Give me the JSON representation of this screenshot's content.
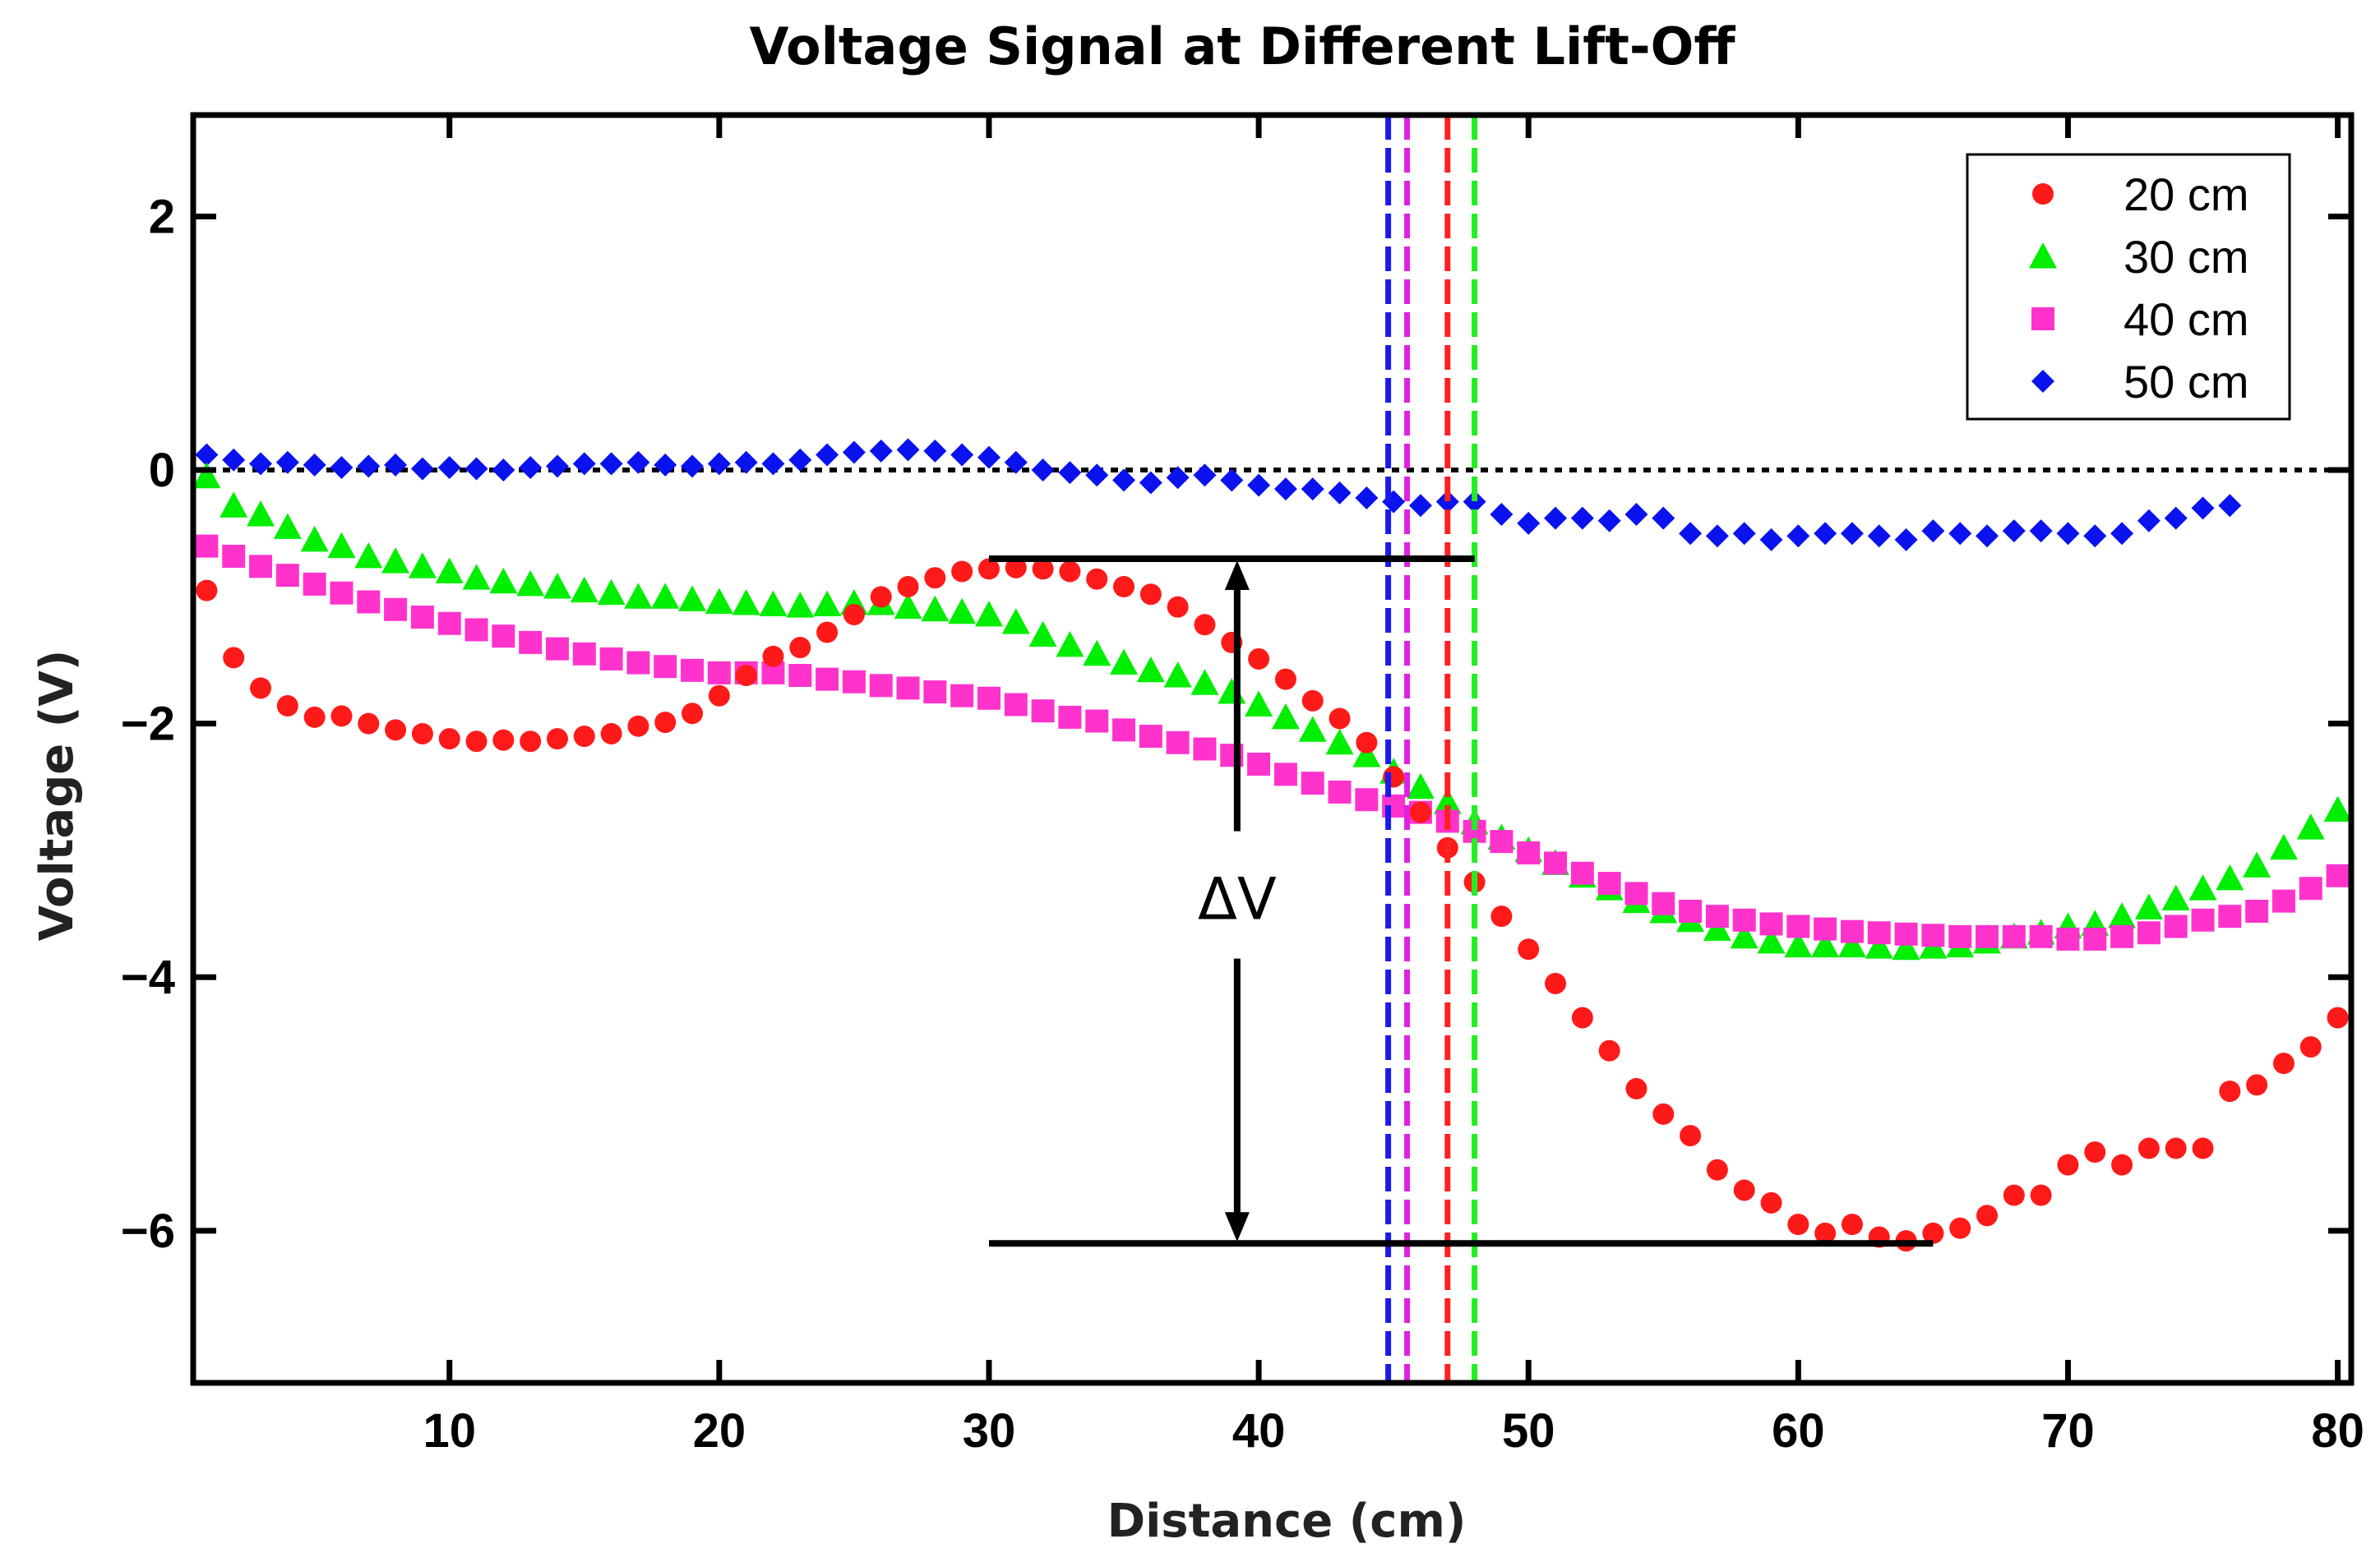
{
  "chart_data": {
    "type": "scatter",
    "title": "Voltage Signal at Different Lift-Off",
    "xlabel": "Distance (cm)",
    "ylabel": "Voltage (V)",
    "xlim": [
      0.5,
      80.5
    ],
    "ylim": [
      -7.2,
      2.8
    ],
    "xticks": [
      10,
      20,
      30,
      40,
      50,
      60,
      70,
      80
    ],
    "xtick_labels": [
      "10",
      "20",
      "30",
      "40",
      "50",
      "60",
      "70",
      "80"
    ],
    "yticks": [
      2,
      0,
      -2,
      -4,
      -6
    ],
    "ytick_labels": [
      "2",
      "0",
      "−2",
      "−4",
      "−6"
    ],
    "zero_line": {
      "y": 0,
      "style": "dotted",
      "color": "#000000"
    },
    "legend_position": "top-right",
    "series": [
      {
        "name": "20 cm",
        "marker": "circle",
        "color": "#ff1a1a",
        "x": [
          1,
          2,
          3,
          4,
          5,
          6,
          7,
          8,
          9,
          10,
          11,
          12,
          13,
          14,
          15,
          16,
          17,
          18,
          19,
          20,
          21,
          22,
          23,
          24,
          25,
          26,
          27,
          28,
          29,
          30,
          31,
          32,
          33,
          34,
          35,
          36,
          37,
          38,
          39,
          40,
          41,
          42,
          43,
          44,
          45,
          46,
          47,
          48,
          49,
          50,
          51,
          52,
          53,
          54,
          55,
          56,
          57,
          58,
          59,
          60,
          61,
          62,
          63,
          64,
          65,
          66,
          67,
          68,
          69,
          70,
          71,
          72,
          73,
          74,
          75,
          76,
          77,
          78,
          79,
          80
        ],
        "y": [
          -0.95,
          -1.48,
          -1.72,
          -1.86,
          -1.95,
          -1.94,
          -2.0,
          -2.05,
          -2.08,
          -2.12,
          -2.14,
          -2.13,
          -2.14,
          -2.12,
          -2.1,
          -2.08,
          -2.02,
          -1.99,
          -1.92,
          -1.78,
          -1.62,
          -1.47,
          -1.4,
          -1.28,
          -1.14,
          -1.0,
          -0.92,
          -0.85,
          -0.8,
          -0.78,
          -0.77,
          -0.78,
          -0.8,
          -0.86,
          -0.92,
          -0.98,
          -1.08,
          -1.22,
          -1.36,
          -1.49,
          -1.65,
          -1.82,
          -1.96,
          -2.15,
          -2.42,
          -2.7,
          -2.98,
          -3.25,
          -3.52,
          -3.78,
          -4.05,
          -4.32,
          -4.58,
          -4.88,
          -5.08,
          -5.25,
          -5.52,
          -5.68,
          -5.78,
          -5.95,
          -6.02,
          -5.95,
          -6.05,
          -6.08,
          -6.02,
          -5.98,
          -5.88,
          -5.72,
          -5.72,
          -5.48,
          -5.38,
          -5.48,
          -5.35,
          -5.35,
          -5.35,
          -4.9,
          -4.85,
          -4.68,
          -4.55,
          -4.32
        ]
      },
      {
        "name": "30 cm",
        "marker": "triangle",
        "color": "#00ee00",
        "x": [
          1,
          2,
          3,
          4,
          5,
          6,
          7,
          8,
          9,
          10,
          11,
          12,
          13,
          14,
          15,
          16,
          17,
          18,
          19,
          20,
          21,
          22,
          23,
          24,
          25,
          26,
          27,
          28,
          29,
          30,
          31,
          32,
          33,
          34,
          35,
          36,
          37,
          38,
          39,
          40,
          41,
          42,
          43,
          44,
          45,
          46,
          47,
          48,
          49,
          50,
          51,
          52,
          53,
          54,
          55,
          56,
          57,
          58,
          59,
          60,
          61,
          62,
          63,
          64,
          65,
          66,
          67,
          68,
          69,
          70,
          71,
          72,
          73,
          74,
          75,
          76,
          77,
          78,
          79,
          80
        ],
        "y": [
          -0.05,
          -0.28,
          -0.35,
          -0.45,
          -0.55,
          -0.6,
          -0.68,
          -0.72,
          -0.76,
          -0.8,
          -0.85,
          -0.88,
          -0.9,
          -0.92,
          -0.95,
          -0.97,
          -1.0,
          -1.0,
          -1.02,
          -1.04,
          -1.05,
          -1.06,
          -1.07,
          -1.06,
          -1.05,
          -1.05,
          -1.08,
          -1.1,
          -1.12,
          -1.14,
          -1.2,
          -1.3,
          -1.38,
          -1.45,
          -1.52,
          -1.58,
          -1.62,
          -1.68,
          -1.75,
          -1.85,
          -1.95,
          -2.05,
          -2.15,
          -2.25,
          -2.38,
          -2.5,
          -2.62,
          -2.78,
          -2.9,
          -3.0,
          -3.1,
          -3.2,
          -3.3,
          -3.4,
          -3.48,
          -3.55,
          -3.62,
          -3.68,
          -3.72,
          -3.75,
          -3.75,
          -3.75,
          -3.76,
          -3.77,
          -3.76,
          -3.75,
          -3.72,
          -3.68,
          -3.65,
          -3.6,
          -3.58,
          -3.52,
          -3.45,
          -3.38,
          -3.3,
          -3.22,
          -3.12,
          -2.98,
          -2.82,
          -2.68
        ]
      },
      {
        "name": "40 cm",
        "marker": "square",
        "color": "#ff33cc",
        "x": [
          1,
          2,
          3,
          4,
          5,
          6,
          7,
          8,
          9,
          10,
          11,
          12,
          13,
          14,
          15,
          16,
          17,
          18,
          19,
          20,
          21,
          22,
          23,
          24,
          25,
          26,
          27,
          28,
          29,
          30,
          31,
          32,
          33,
          34,
          35,
          36,
          37,
          38,
          39,
          40,
          41,
          42,
          43,
          44,
          45,
          46,
          47,
          48,
          49,
          50,
          51,
          52,
          53,
          54,
          55,
          56,
          57,
          58,
          59,
          60,
          61,
          62,
          63,
          64,
          65,
          66,
          67,
          68,
          69,
          70,
          71,
          72,
          73,
          74,
          75,
          76,
          77,
          78,
          79,
          80
        ],
        "y": [
          -0.6,
          -0.68,
          -0.76,
          -0.83,
          -0.9,
          -0.97,
          -1.04,
          -1.1,
          -1.16,
          -1.21,
          -1.26,
          -1.31,
          -1.36,
          -1.41,
          -1.45,
          -1.49,
          -1.52,
          -1.55,
          -1.58,
          -1.6,
          -1.6,
          -1.6,
          -1.62,
          -1.65,
          -1.67,
          -1.7,
          -1.72,
          -1.75,
          -1.78,
          -1.8,
          -1.85,
          -1.9,
          -1.95,
          -1.98,
          -2.05,
          -2.1,
          -2.15,
          -2.2,
          -2.25,
          -2.32,
          -2.4,
          -2.47,
          -2.54,
          -2.6,
          -2.65,
          -2.7,
          -2.77,
          -2.85,
          -2.93,
          -3.02,
          -3.1,
          -3.18,
          -3.26,
          -3.34,
          -3.42,
          -3.48,
          -3.52,
          -3.55,
          -3.58,
          -3.6,
          -3.62,
          -3.64,
          -3.65,
          -3.66,
          -3.67,
          -3.68,
          -3.68,
          -3.68,
          -3.68,
          -3.7,
          -3.7,
          -3.68,
          -3.65,
          -3.6,
          -3.55,
          -3.52,
          -3.48,
          -3.4,
          -3.3,
          -3.2
        ]
      },
      {
        "name": "50 cm",
        "marker": "diamond",
        "color": "#0a12ee",
        "x": [
          1,
          2,
          3,
          4,
          5,
          6,
          7,
          8,
          9,
          10,
          11,
          12,
          13,
          14,
          15,
          16,
          17,
          18,
          19,
          20,
          21,
          22,
          23,
          24,
          25,
          26,
          27,
          28,
          29,
          30,
          31,
          32,
          33,
          34,
          35,
          36,
          37,
          38,
          39,
          40,
          41,
          42,
          43,
          44,
          45,
          46,
          47,
          48,
          49,
          50,
          51,
          52,
          53,
          54,
          55,
          56,
          57,
          58,
          59,
          60,
          61,
          62,
          63,
          64,
          65,
          66,
          67,
          68,
          69,
          70,
          71,
          72,
          73,
          74,
          75,
          76
        ],
        "y": [
          0.12,
          0.08,
          0.05,
          0.06,
          0.04,
          0.02,
          0.03,
          0.04,
          0.01,
          0.02,
          0.01,
          0.0,
          0.02,
          0.03,
          0.05,
          0.05,
          0.06,
          0.04,
          0.03,
          0.05,
          0.06,
          0.05,
          0.08,
          0.12,
          0.14,
          0.15,
          0.16,
          0.15,
          0.12,
          0.1,
          0.06,
          0.0,
          -0.02,
          -0.04,
          -0.08,
          -0.1,
          -0.06,
          -0.04,
          -0.08,
          -0.12,
          -0.15,
          -0.15,
          -0.18,
          -0.22,
          -0.25,
          -0.28,
          -0.25,
          -0.25,
          -0.35,
          -0.42,
          -0.38,
          -0.38,
          -0.4,
          -0.35,
          -0.38,
          -0.5,
          -0.52,
          -0.5,
          -0.55,
          -0.52,
          -0.5,
          -0.5,
          -0.52,
          -0.55,
          -0.48,
          -0.5,
          -0.52,
          -0.48,
          -0.48,
          -0.5,
          -0.52,
          -0.5,
          -0.4,
          -0.38,
          -0.3,
          -0.28
        ]
      }
    ],
    "reference_lines": [
      {
        "x": 44.8,
        "color": "#1a1aee",
        "style": "dashed"
      },
      {
        "x": 45.5,
        "color": "#e020e0",
        "style": "dashed"
      },
      {
        "x": 47.0,
        "color": "#ff2020",
        "style": "dashed"
      },
      {
        "x": 48.0,
        "color": "#22ee22",
        "style": "dashed"
      }
    ],
    "annotation": {
      "label": "ΔV",
      "arrow_x": 39.2,
      "arrow_top_y": -0.7,
      "arrow_bottom_y": -6.1,
      "top_line_x": [
        30,
        48.0
      ],
      "bottom_line_x": [
        30,
        65.0
      ]
    }
  }
}
